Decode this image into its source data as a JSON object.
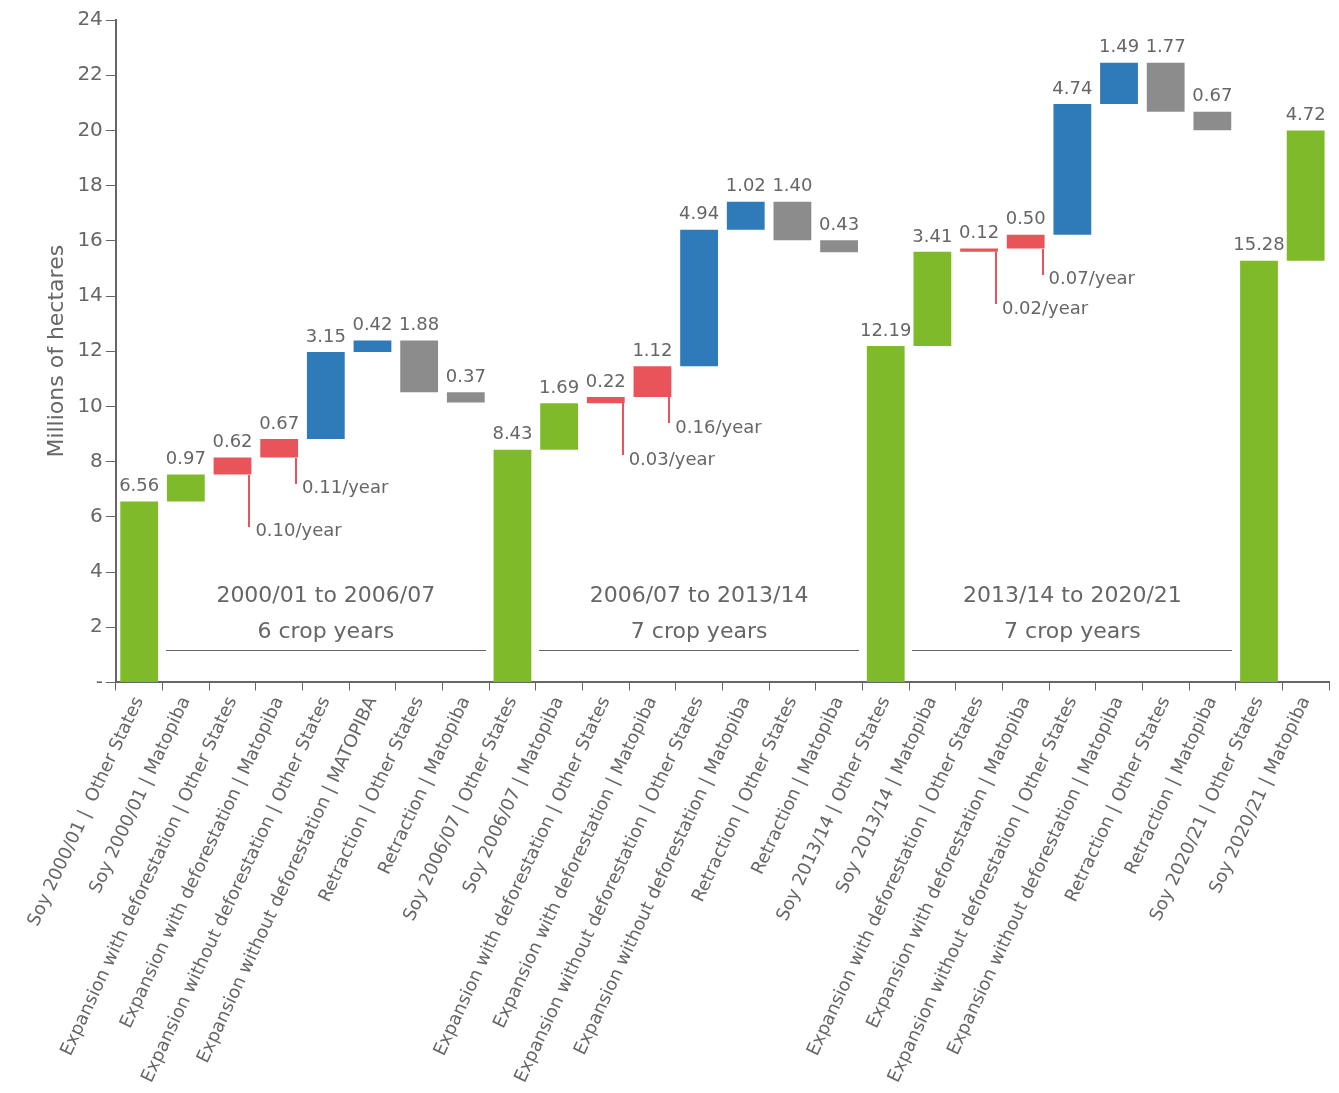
{
  "chart_data": {
    "type": "bar",
    "ylabel": "Millions of hectares",
    "categories": [
      "Soy 2000/01 |  Other States",
      "Soy 2000/01 | Matopiba",
      "Expansion with deforestation | Other States",
      "Expansion with deforestation | Matopiba",
      "Expansion without deforestation | Other States",
      "Expansion without deforestation | MATOPIBA",
      "Retraction | Other States",
      "Retraction | Matopiba",
      "Soy 2006/07 | Other States",
      "Soy 2006/07 | Matopiba",
      "Expansion with deforestation | Other States",
      "Expansion with deforestation | Matopiba",
      "Expansion without deforestation | Other States",
      "Expansion without deforestation | Matopiba",
      "Retraction | Other States",
      "Retraction | Matopiba",
      "Soy 2013/14 | Other States",
      "Soy 2013/14 | Matopiba",
      "Expansion with deforestation | Other States",
      "Expansion with deforestation | Matopiba",
      "Expansion without deforestation | Other States",
      "Expansion without deforestation | Matopiba",
      "Retraction | Other States",
      "Retraction | Matopiba",
      "Soy 2020/21 | Other States",
      "Soy 2020/21 | Matopiba"
    ],
    "values": [
      6.56,
      0.97,
      0.62,
      0.67,
      3.15,
      0.42,
      -1.88,
      -0.37,
      8.43,
      1.69,
      0.22,
      1.12,
      4.94,
      1.02,
      -1.4,
      -0.43,
      12.19,
      3.41,
      0.12,
      0.5,
      4.74,
      1.49,
      -1.77,
      -0.67,
      15.28,
      4.72
    ],
    "base": [
      0,
      6.56,
      7.53,
      8.15,
      8.82,
      11.97,
      12.39,
      10.51,
      0,
      8.43,
      10.12,
      10.34,
      11.46,
      16.4,
      17.42,
      16.02,
      0,
      12.19,
      15.6,
      15.72,
      16.22,
      20.96,
      22.45,
      20.68,
      0,
      15.28
    ],
    "colors": [
      "#7fba2a",
      "#7fba2a",
      "#e9545a",
      "#e9545a",
      "#2f7ab8",
      "#2f7ab8",
      "#8c8c8c",
      "#8c8c8c",
      "#7fba2a",
      "#7fba2a",
      "#e9545a",
      "#e9545a",
      "#2f7ab8",
      "#2f7ab8",
      "#8c8c8c",
      "#8c8c8c",
      "#7fba2a",
      "#7fba2a",
      "#e9545a",
      "#e9545a",
      "#2f7ab8",
      "#2f7ab8",
      "#8c8c8c",
      "#8c8c8c",
      "#7fba2a",
      "#7fba2a"
    ],
    "value_labels": [
      "6.56",
      "0.97",
      "0.62",
      "0.67",
      "3.15",
      "0.42",
      "1.88",
      "0.37",
      "8.43",
      "1.69",
      "0.22",
      "1.12",
      "4.94",
      "1.02",
      "1.40",
      "0.43",
      "12.19",
      "3.41",
      "0.12",
      "0.50",
      "4.74",
      "1.49",
      "1.77",
      "0.67",
      "15.28",
      "4.72"
    ],
    "ylim": [
      0,
      24
    ],
    "yticks": [
      {
        "value": 0,
        "label": "-"
      },
      2,
      4,
      6,
      8,
      10,
      12,
      14,
      16,
      18,
      20,
      22,
      24
    ],
    "grid": false,
    "legend": false,
    "annotations": [
      "0.10/year",
      "0.11/year",
      "2000/01 to 2006/07",
      "6 crop years",
      "0.03/year",
      "0.16/year",
      "2006/07 to 2013/14",
      "7 crop years",
      "0.02/year",
      "0.07/year",
      "2013/14 to 2020/21",
      "7 crop years"
    ]
  }
}
